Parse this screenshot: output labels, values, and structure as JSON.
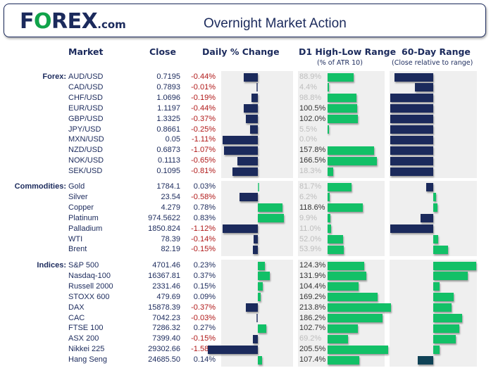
{
  "header": {
    "logo_text_f": "F",
    "logo_text_o": "O",
    "logo_text_rest": "REX",
    "logo_suffix": ".com",
    "title": "Overnight Market Action"
  },
  "columns": {
    "market": "Market",
    "close": "Close",
    "daily_change": "Daily % Change",
    "d1_range": "D1 High-Low Range",
    "d1_range_sub": "(% of ATR 10)",
    "range_60d": "60-Day Range",
    "range_60d_sub": "(Close relative to range)"
  },
  "colors": {
    "navy": "#1b2a5c",
    "green": "#12c067",
    "negative_text": "#b01818",
    "panel_bg": "#efefef"
  },
  "sections": [
    {
      "label": "Forex:",
      "rows": [
        {
          "market": "AUD/USD",
          "close": "0.7195",
          "change": "-0.44%",
          "change_value": -0.44,
          "atr": "88.9%",
          "atr_value": 88.9,
          "range60": -0.9
        },
        {
          "market": "CAD/USD",
          "close": "0.7893",
          "change": "-0.01%",
          "change_value": -0.01,
          "atr": "4.4%",
          "atr_value": 4.4,
          "range60": -0.42
        },
        {
          "market": "CHF/USD",
          "close": "1.0696",
          "change": "-0.19%",
          "change_value": -0.19,
          "atr": "98.8%",
          "atr_value": 98.8,
          "range60": -1.0
        },
        {
          "market": "EUR/USD",
          "close": "1.1197",
          "change": "-0.44%",
          "change_value": -0.44,
          "atr": "100.5%",
          "atr_value": 100.5,
          "range60": -1.0
        },
        {
          "market": "GBP/USD",
          "close": "1.3325",
          "change": "-0.37%",
          "change_value": -0.37,
          "atr": "102.0%",
          "atr_value": 102.0,
          "range60": -1.0
        },
        {
          "market": "JPY/USD",
          "close": "0.8661",
          "change": "-0.25%",
          "change_value": -0.25,
          "atr": "5.5%",
          "atr_value": 5.5,
          "range60": -1.0
        },
        {
          "market": "MXN/USD",
          "close": "0.05",
          "change": "-1.11%",
          "change_value": -1.11,
          "atr": "0.0%",
          "atr_value": 0.0,
          "range60": -1.0
        },
        {
          "market": "NZD/USD",
          "close": "0.6873",
          "change": "-1.07%",
          "change_value": -1.07,
          "atr": "157.8%",
          "atr_value": 157.8,
          "range60": -1.0
        },
        {
          "market": "NOK/USD",
          "close": "0.1113",
          "change": "-0.65%",
          "change_value": -0.65,
          "atr": "166.5%",
          "atr_value": 166.5,
          "range60": -1.0
        },
        {
          "market": "SEK/USD",
          "close": "0.1095",
          "change": "-0.81%",
          "change_value": -0.81,
          "atr": "18.3%",
          "atr_value": 18.3,
          "range60": -1.0
        }
      ]
    },
    {
      "label": "Commodities:",
      "rows": [
        {
          "market": "Gold",
          "close": "1784.1",
          "change": "0.03%",
          "change_value": 0.03,
          "atr": "81.7%",
          "atr_value": 81.7,
          "range60": -0.16
        },
        {
          "market": "Silver",
          "close": "23.54",
          "change": "-0.58%",
          "change_value": -0.58,
          "atr": "6.2%",
          "atr_value": 6.2,
          "range60": 0.06
        },
        {
          "market": "Copper",
          "close": "4.279",
          "change": "0.78%",
          "change_value": 0.78,
          "atr": "118.6%",
          "atr_value": 118.6,
          "range60": 0.1
        },
        {
          "market": "Platinum",
          "close": "974.5622",
          "change": "0.83%",
          "change_value": 0.83,
          "atr": "9.9%",
          "atr_value": 9.9,
          "range60": -0.3
        },
        {
          "market": "Palladium",
          "close": "1850.824",
          "change": "-1.12%",
          "change_value": -1.12,
          "atr": "11.0%",
          "atr_value": 11.0,
          "range60": -1.0
        },
        {
          "market": "WTI",
          "close": "78.39",
          "change": "-0.14%",
          "change_value": -0.14,
          "atr": "52.0%",
          "atr_value": 52.0,
          "range60": 0.12
        },
        {
          "market": "Brent",
          "close": "82.19",
          "change": "-0.15%",
          "change_value": -0.15,
          "atr": "53.9%",
          "atr_value": 53.9,
          "range60": 0.34
        }
      ]
    },
    {
      "label": "Indices:",
      "rows": [
        {
          "market": "S&P 500",
          "close": "4701.46",
          "change": "0.23%",
          "change_value": 0.23,
          "atr": "124.3%",
          "atr_value": 124.3,
          "range60": 1.0
        },
        {
          "market": "Nasdaq-100",
          "close": "16367.81",
          "change": "0.37%",
          "change_value": 0.37,
          "atr": "131.9%",
          "atr_value": 131.9,
          "range60": 0.81
        },
        {
          "market": "Russell 2000",
          "close": "2331.46",
          "change": "0.15%",
          "change_value": 0.15,
          "atr": "104.4%",
          "atr_value": 104.4,
          "range60": 0.15
        },
        {
          "market": "STOXX 600",
          "close": "479.69",
          "change": "0.09%",
          "change_value": 0.09,
          "atr": "169.2%",
          "atr_value": 169.2,
          "range60": 0.48
        },
        {
          "market": "DAX",
          "close": "15878.39",
          "change": "-0.37%",
          "change_value": -0.37,
          "atr": "213.8%",
          "atr_value": 213.8,
          "range60": 0.42
        },
        {
          "market": "CAC",
          "close": "7042.23",
          "change": "-0.03%",
          "change_value": -0.03,
          "atr": "186.2%",
          "atr_value": 186.2,
          "range60": 0.68
        },
        {
          "market": "FTSE 100",
          "close": "7286.32",
          "change": "0.27%",
          "change_value": 0.27,
          "atr": "102.7%",
          "atr_value": 102.7,
          "range60": 0.6
        },
        {
          "market": "ASX 200",
          "close": "7399.40",
          "change": "-0.15%",
          "change_value": -0.15,
          "atr": "69.2%",
          "atr_value": 69.2,
          "range60": 0.52
        },
        {
          "market": "Nikkei 225",
          "close": "29302.66",
          "change": "-1.58%",
          "change_value": -1.58,
          "atr": "205.5%",
          "atr_value": 205.5,
          "range60": 0.14
        },
        {
          "market": "Hang Seng",
          "close": "24685.50",
          "change": "0.14%",
          "change_value": 0.14,
          "atr": "107.4%",
          "atr_value": 107.4,
          "range60": -0.36
        }
      ]
    }
  ]
}
